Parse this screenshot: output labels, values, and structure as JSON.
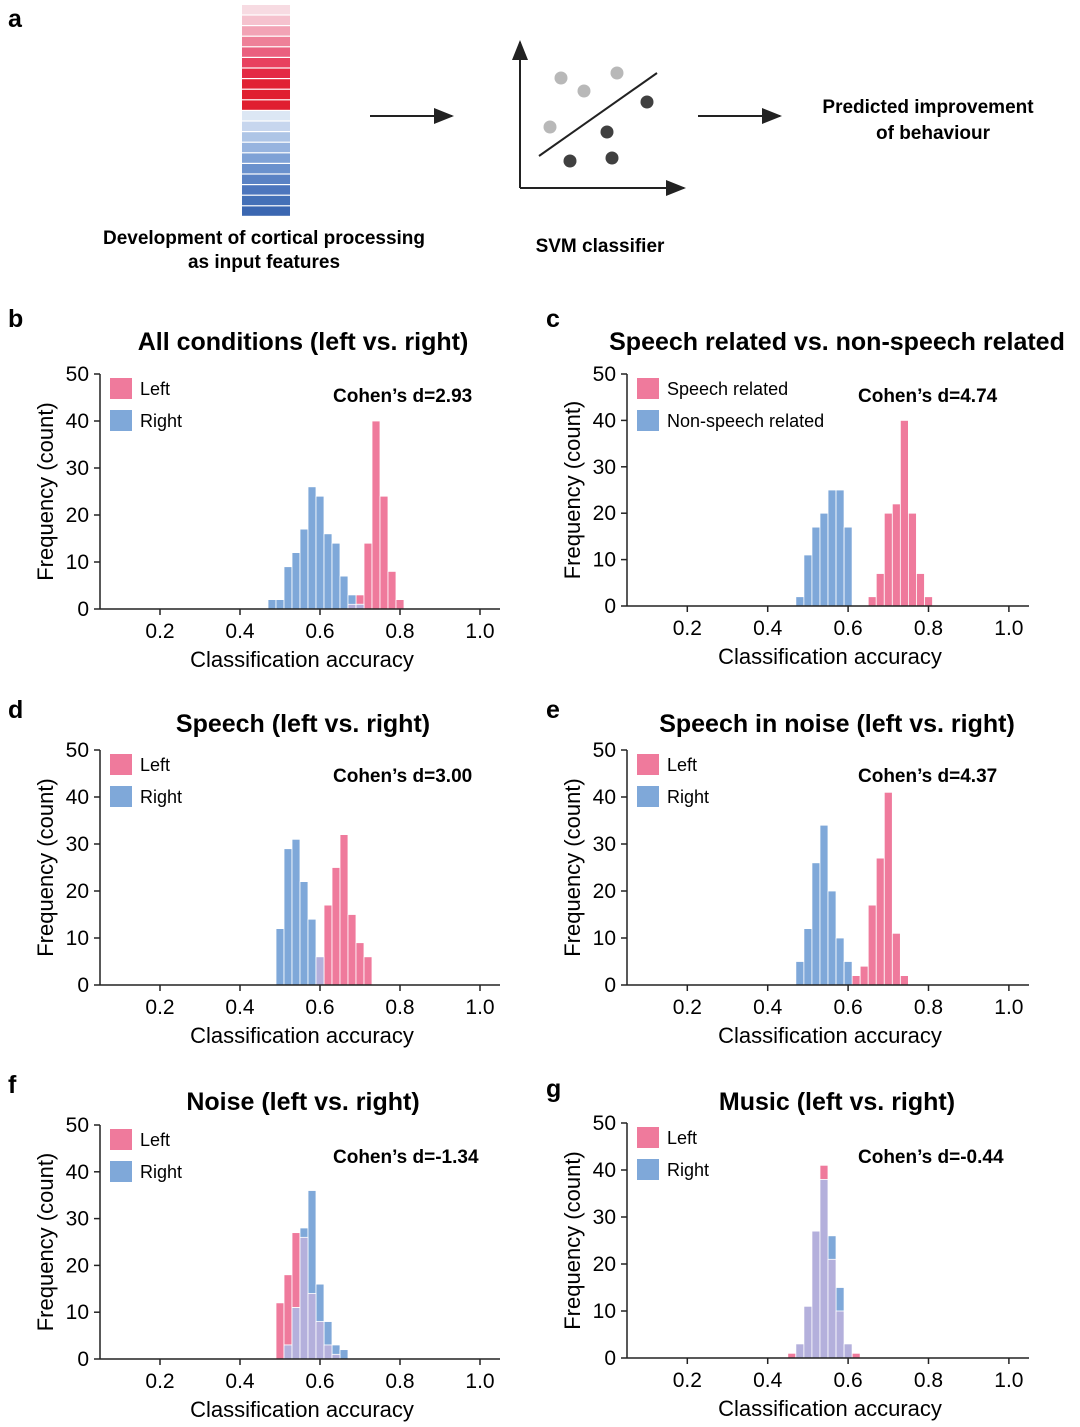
{
  "schematic": {
    "letter": "a",
    "features_caption": [
      "Development of cortical processing",
      "as input features"
    ],
    "classifier_caption": "SVM classifier",
    "output_caption": [
      "Predicted improvement",
      "of behaviour"
    ],
    "feature_colors": [
      "#f7dbe2",
      "#f5c2ce",
      "#f2a3b5",
      "#ee8098",
      "#ea607f",
      "#e8415f",
      "#e42a44",
      "#e12234",
      "#e01f30",
      "#e01f30",
      "#dce7f4",
      "#c7d6ee",
      "#aec5e6",
      "#97b4df",
      "#7fa2d6",
      "#6a91cd",
      "#5a82c4",
      "#4d76bd",
      "#4470b7",
      "#3b67b1"
    ],
    "svm_points_light": 4,
    "svm_points_dark": 4
  },
  "colors": {
    "pink": "#ef7a9c",
    "blue": "#7fa8d9",
    "overlap": "#b4b0dc",
    "axis": "#222222",
    "light_point": "#b8b8b8",
    "dark_point": "#404040"
  },
  "chart_data": [
    {
      "id": "b",
      "letter": "b",
      "type": "bar",
      "title": "All conditions (left vs. right)",
      "xlabel": "Classification accuracy",
      "ylabel": "Frequency (count)",
      "xlim": [
        0.05,
        1.05
      ],
      "ylim": [
        0,
        50
      ],
      "xticks": [
        "0.2",
        "0.4",
        "0.6",
        "0.8",
        "1.0"
      ],
      "yticks": [
        "0",
        "10",
        "20",
        "30",
        "40",
        "50"
      ],
      "cohen": "Cohen’s d=2.93",
      "bin_width": 0.02,
      "series": [
        {
          "name": "Left",
          "color": "pink",
          "x": [
            0.68,
            0.7,
            0.72,
            0.74,
            0.76,
            0.78,
            0.8
          ],
          "values": [
            1,
            3,
            14,
            40,
            24,
            8,
            2
          ]
        },
        {
          "name": "Right",
          "color": "blue",
          "x": [
            0.48,
            0.5,
            0.52,
            0.54,
            0.56,
            0.58,
            0.6,
            0.62,
            0.64,
            0.66,
            0.68,
            0.7,
            0.72
          ],
          "values": [
            2,
            2,
            9,
            12,
            17,
            26,
            24,
            16,
            14,
            7,
            3,
            1,
            0
          ]
        }
      ]
    },
    {
      "id": "c",
      "letter": "c",
      "type": "bar",
      "title": "Speech related vs. non-speech related",
      "xlabel": "Classification accuracy",
      "ylabel": "Frequency (count)",
      "xlim": [
        0.05,
        1.05
      ],
      "ylim": [
        0,
        50
      ],
      "xticks": [
        "0.2",
        "0.4",
        "0.6",
        "0.8",
        "1.0"
      ],
      "yticks": [
        "0",
        "10",
        "20",
        "30",
        "40",
        "50"
      ],
      "cohen": "Cohen’s d=4.74",
      "bin_width": 0.02,
      "series": [
        {
          "name": "Speech related",
          "color": "pink",
          "x": [
            0.66,
            0.68,
            0.7,
            0.72,
            0.74,
            0.76,
            0.78,
            0.8
          ],
          "values": [
            2,
            7,
            20,
            22,
            40,
            20,
            7,
            2
          ]
        },
        {
          "name": "Non-speech related",
          "color": "blue",
          "x": [
            0.48,
            0.5,
            0.52,
            0.54,
            0.56,
            0.58,
            0.6,
            0.62
          ],
          "values": [
            2,
            11,
            17,
            20,
            25,
            25,
            17,
            0
          ]
        }
      ]
    },
    {
      "id": "d",
      "letter": "d",
      "type": "bar",
      "title": "Speech (left vs. right)",
      "xlabel": "Classification accuracy",
      "ylabel": "Frequency (count)",
      "xlim": [
        0.05,
        1.05
      ],
      "ylim": [
        0,
        50
      ],
      "xticks": [
        "0.2",
        "0.4",
        "0.6",
        "0.8",
        "1.0"
      ],
      "yticks": [
        "0",
        "10",
        "20",
        "30",
        "40",
        "50"
      ],
      "cohen": "Cohen’s d=3.00",
      "bin_width": 0.02,
      "series": [
        {
          "name": "Left",
          "color": "pink",
          "x": [
            0.6,
            0.62,
            0.64,
            0.66,
            0.68,
            0.7,
            0.72
          ],
          "values": [
            6,
            17,
            25,
            32,
            15,
            9,
            6
          ]
        },
        {
          "name": "Right",
          "color": "blue",
          "x": [
            0.5,
            0.52,
            0.54,
            0.56,
            0.58,
            0.6,
            0.62
          ],
          "values": [
            12,
            29,
            31,
            22,
            14,
            6,
            0
          ]
        }
      ]
    },
    {
      "id": "e",
      "letter": "e",
      "type": "bar",
      "title": "Speech in noise (left vs. right)",
      "xlabel": "Classification accuracy",
      "ylabel": "Frequency (count)",
      "xlim": [
        0.05,
        1.05
      ],
      "ylim": [
        0,
        50
      ],
      "xticks": [
        "0.2",
        "0.4",
        "0.6",
        "0.8",
        "1.0"
      ],
      "yticks": [
        "0",
        "10",
        "20",
        "30",
        "40",
        "50"
      ],
      "cohen": "Cohen’s d=4.37",
      "bin_width": 0.02,
      "series": [
        {
          "name": "Left",
          "color": "pink",
          "x": [
            0.62,
            0.64,
            0.66,
            0.68,
            0.7,
            0.72,
            0.74
          ],
          "values": [
            2,
            4,
            17,
            27,
            41,
            11,
            2
          ]
        },
        {
          "name": "Right",
          "color": "blue",
          "x": [
            0.48,
            0.5,
            0.52,
            0.54,
            0.56,
            0.58,
            0.6,
            0.62
          ],
          "values": [
            5,
            12,
            26,
            34,
            20,
            10,
            5,
            0
          ]
        }
      ]
    },
    {
      "id": "f",
      "letter": "f",
      "type": "bar",
      "title": "Noise (left vs. right)",
      "xlabel": "Classification accuracy",
      "ylabel": "Frequency (count)",
      "xlim": [
        0.05,
        1.05
      ],
      "ylim": [
        0,
        50
      ],
      "xticks": [
        "0.2",
        "0.4",
        "0.6",
        "0.8",
        "1.0"
      ],
      "yticks": [
        "0",
        "10",
        "20",
        "30",
        "40",
        "50"
      ],
      "cohen": "Cohen’s d=-1.34",
      "bin_width": 0.02,
      "series": [
        {
          "name": "Left",
          "color": "pink",
          "x": [
            0.5,
            0.52,
            0.54,
            0.56,
            0.58,
            0.6,
            0.62,
            0.64
          ],
          "values": [
            12,
            18,
            27,
            26,
            14,
            8,
            3,
            1
          ]
        },
        {
          "name": "Right",
          "color": "blue",
          "x": [
            0.52,
            0.54,
            0.56,
            0.58,
            0.6,
            0.62,
            0.64,
            0.66,
            0.68
          ],
          "values": [
            3,
            11,
            28,
            36,
            16,
            8,
            3,
            2,
            0
          ]
        }
      ]
    },
    {
      "id": "g",
      "letter": "g",
      "type": "bar",
      "title": "Music (left vs. right)",
      "xlabel": "Classification accuracy",
      "ylabel": "Frequency (count)",
      "xlim": [
        0.05,
        1.05
      ],
      "ylim": [
        0,
        50
      ],
      "xticks": [
        "0.2",
        "0.4",
        "0.6",
        "0.8",
        "1.0"
      ],
      "yticks": [
        "0",
        "10",
        "20",
        "30",
        "40",
        "50"
      ],
      "cohen": "Cohen’s d=-0.44",
      "bin_width": 0.02,
      "series": [
        {
          "name": "Left",
          "color": "pink",
          "x": [
            0.46,
            0.48,
            0.5,
            0.52,
            0.54,
            0.56,
            0.58,
            0.6,
            0.62
          ],
          "values": [
            1,
            3,
            11,
            27,
            41,
            21,
            10,
            3,
            1
          ]
        },
        {
          "name": "Right",
          "color": "blue",
          "x": [
            0.46,
            0.48,
            0.5,
            0.52,
            0.54,
            0.56,
            0.58,
            0.6,
            0.62
          ],
          "values": [
            0,
            3,
            11,
            27,
            38,
            26,
            15,
            3,
            0
          ]
        }
      ]
    }
  ]
}
